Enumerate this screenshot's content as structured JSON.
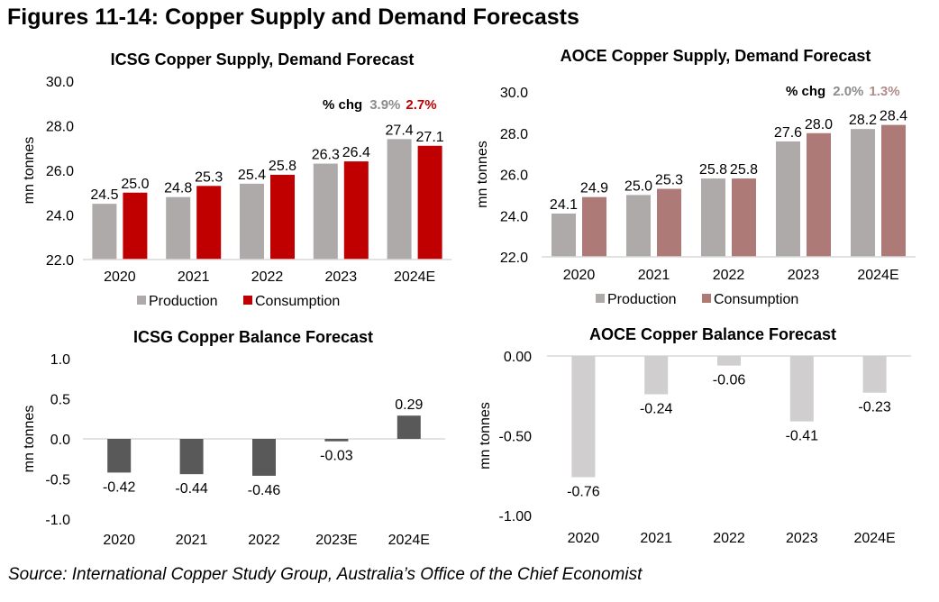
{
  "page": {
    "title": "Figures 11-14: Copper Supply and Demand Forecasts",
    "source": "Source: International Copper Study Group, Australia’s Office of the Chief Economist"
  },
  "colors": {
    "production": "#aeaaaa",
    "icsg_consumption": "#c00000",
    "aoce_consumption": "#ad7a78",
    "icsg_balance": "#595959",
    "aoce_balance": "#d0cece",
    "axis": "#d9d9d9"
  },
  "chart_data": [
    {
      "id": "icsg_sd",
      "type": "bar",
      "title": "ICSG Copper Supply, Demand Forecast",
      "ylabel": "mn tonnes",
      "xlabel": "",
      "categories": [
        "2020",
        "2021",
        "2022",
        "2023",
        "2024E"
      ],
      "series": [
        {
          "name": "Production",
          "values": [
            24.5,
            24.8,
            25.4,
            26.3,
            27.4
          ],
          "labels": [
            "24.5",
            "24.8",
            "25.4",
            "26.3",
            "27.4"
          ]
        },
        {
          "name": "Consumption",
          "values": [
            25.0,
            25.3,
            25.8,
            26.4,
            27.1
          ],
          "labels": [
            "25.0",
            "25.3",
            "25.8",
            "26.4",
            "27.1"
          ]
        }
      ],
      "ylim": [
        22.0,
        30.0
      ],
      "yticks": [
        "22.0",
        "24.0",
        "26.0",
        "28.0",
        "30.0"
      ],
      "grid": false,
      "legend": "bottom",
      "annotation": {
        "label": "% chg",
        "production": "3.9%",
        "consumption": "2.7%"
      }
    },
    {
      "id": "aoce_sd",
      "type": "bar",
      "title": "AOCE Copper Supply, Demand Forecast",
      "ylabel": "mn tonnes",
      "xlabel": "",
      "categories": [
        "2020",
        "2021",
        "2022",
        "2023",
        "2024E"
      ],
      "series": [
        {
          "name": "Production",
          "values": [
            24.1,
            25.0,
            25.8,
            27.6,
            28.2
          ],
          "labels": [
            "24.1",
            "25.0",
            "25.8",
            "27.6",
            "28.2"
          ]
        },
        {
          "name": "Consumption",
          "values": [
            24.9,
            25.3,
            25.8,
            28.0,
            28.4
          ],
          "labels": [
            "24.9",
            "25.3",
            "25.8",
            "28.0",
            "28.4"
          ]
        }
      ],
      "ylim": [
        22.0,
        30.0
      ],
      "yticks": [
        "22.0",
        "24.0",
        "26.0",
        "28.0",
        "30.0"
      ],
      "grid": false,
      "legend": "bottom",
      "annotation": {
        "label": "% chg",
        "production": "2.0%",
        "consumption": "1.3%"
      }
    },
    {
      "id": "icsg_bal",
      "type": "bar",
      "title": "ICSG Copper Balance Forecast",
      "ylabel": "mn tonnes",
      "xlabel": "",
      "categories": [
        "2020",
        "2021",
        "2022",
        "2023E",
        "2024E"
      ],
      "series": [
        {
          "name": "Balance",
          "values": [
            -0.42,
            -0.44,
            -0.46,
            -0.03,
            0.29
          ],
          "labels": [
            "-0.42",
            "-0.44",
            "-0.46",
            "-0.03",
            "0.29"
          ]
        }
      ],
      "ylim": [
        -1.0,
        1.0
      ],
      "yticks": [
        "-1.0",
        "-0.5",
        "0.0",
        "0.5",
        "1.0"
      ],
      "grid": false,
      "legend": "none"
    },
    {
      "id": "aoce_bal",
      "type": "bar",
      "title": "AOCE Copper Balance Forecast",
      "ylabel": "mn tonnes",
      "xlabel": "",
      "categories": [
        "2020",
        "2021",
        "2022",
        "2023",
        "2024E"
      ],
      "series": [
        {
          "name": "Balance",
          "values": [
            -0.76,
            -0.24,
            -0.06,
            -0.41,
            -0.23
          ],
          "labels": [
            "-0.76",
            "-0.24",
            "-0.06",
            "-0.41",
            "-0.23"
          ]
        }
      ],
      "ylim": [
        -1.0,
        0.0
      ],
      "yticks": [
        "-1.00",
        "-0.50",
        "0.00"
      ],
      "grid": false,
      "legend": "none"
    }
  ]
}
